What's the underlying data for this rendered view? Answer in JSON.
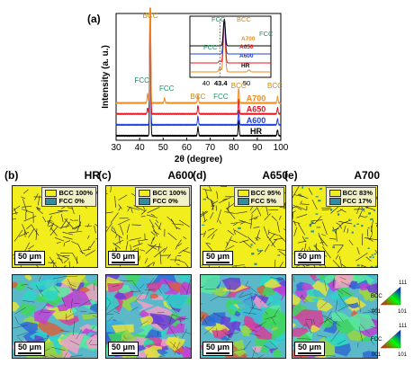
{
  "panel_a": {
    "label": "(a)"
  },
  "chart_data": [
    {
      "type": "line",
      "xlabel": "2θ (degree)",
      "ylabel": "Intensity (a. u.)",
      "xlim": [
        30,
        100
      ],
      "xticks": [
        30,
        40,
        50,
        60,
        70,
        80,
        90,
        100
      ],
      "series": [
        {
          "name": "HR",
          "color": "#000000",
          "offset": 0.0,
          "peaks": [
            [
              44.5,
              1.0
            ],
            [
              64.8,
              0.07
            ],
            [
              82.1,
              0.12
            ],
            [
              98.6,
              0.05
            ]
          ]
        },
        {
          "name": "A600",
          "color": "#1f3fe0",
          "offset": 0.09,
          "peaks": [
            [
              44.5,
              1.0
            ],
            [
              64.8,
              0.07
            ],
            [
              82.1,
              0.12
            ],
            [
              98.6,
              0.05
            ]
          ]
        },
        {
          "name": "A650",
          "color": "#e8141e",
          "offset": 0.18,
          "peaks": [
            [
              43.4,
              0.05
            ],
            [
              44.5,
              1.0
            ],
            [
              64.8,
              0.07
            ],
            [
              82.1,
              0.12
            ],
            [
              98.6,
              0.05
            ]
          ]
        },
        {
          "name": "A700",
          "color": "#f08a1a",
          "offset": 0.27,
          "peaks": [
            [
              43.4,
              0.08
            ],
            [
              44.5,
              1.0
            ],
            [
              50.6,
              0.04
            ],
            [
              64.8,
              0.07
            ],
            [
              82.1,
              0.12
            ],
            [
              98.6,
              0.05
            ]
          ]
        }
      ],
      "annotations": [
        {
          "text": "BCC",
          "x": 44.5,
          "color": "#c58a1c"
        },
        {
          "text": "FCC",
          "x": 41.0,
          "color": "#1f8f6a"
        },
        {
          "text": "FCC",
          "x": 51.5,
          "color": "#1f8f6a"
        },
        {
          "text": "BCC",
          "x": 64.8,
          "color": "#c58a1c"
        },
        {
          "text": "FCC",
          "x": 74.5,
          "color": "#1f8f6a"
        },
        {
          "text": "BCC",
          "x": 82.1,
          "color": "#c58a1c"
        },
        {
          "text": "BCC",
          "x": 97.5,
          "color": "#c58a1c"
        }
      ]
    },
    {
      "type": "line",
      "xlim": [
        36,
        56
      ],
      "xticks": [
        40,
        50
      ],
      "tick_labels": [
        "40",
        "50"
      ],
      "marker_label": "43.4",
      "series_labels": [
        "A700",
        "A650",
        "A600",
        "HR"
      ],
      "annotations": [
        {
          "text": "FCC",
          "color": "#1f8f6a"
        },
        {
          "text": "BCC",
          "color": "#c58a1c"
        },
        {
          "text": "FCC",
          "color": "#1f8f6a"
        },
        {
          "text": "FCC",
          "color": "#1f8f6a"
        }
      ]
    }
  ],
  "phase_maps": [
    {
      "label": "(b)",
      "name": "HR",
      "bcc": "BCC 100%",
      "fcc": "FCC 0%",
      "scale": "50 μm"
    },
    {
      "label": "(c)",
      "name": "A600",
      "bcc": "BCC 100%",
      "fcc": "FCC 0%",
      "scale": "50 μm"
    },
    {
      "label": "(d)",
      "name": "A650",
      "bcc": "BCC 95%",
      "fcc": "FCC 5%",
      "scale": "50 μm"
    },
    {
      "label": "(e)",
      "name": "A700",
      "bcc": "BCC 83%",
      "fcc": "FCC 17%",
      "scale": "50 μm"
    }
  ],
  "ipf_maps": [
    {
      "scale": "50 μm"
    },
    {
      "scale": "50 μm"
    },
    {
      "scale": "50 μm"
    },
    {
      "scale": "50 μm"
    }
  ],
  "ipf_key": [
    {
      "phase": "BCC",
      "top": "111",
      "left": "001",
      "right": "101"
    },
    {
      "phase": "FCC",
      "top": "111",
      "left": "001",
      "right": "101"
    }
  ],
  "colors": {
    "bcc_phase": "#f2ee1e",
    "fcc_phase": "#2f8fa0",
    "grain_boundary": "#1a1a1a"
  }
}
